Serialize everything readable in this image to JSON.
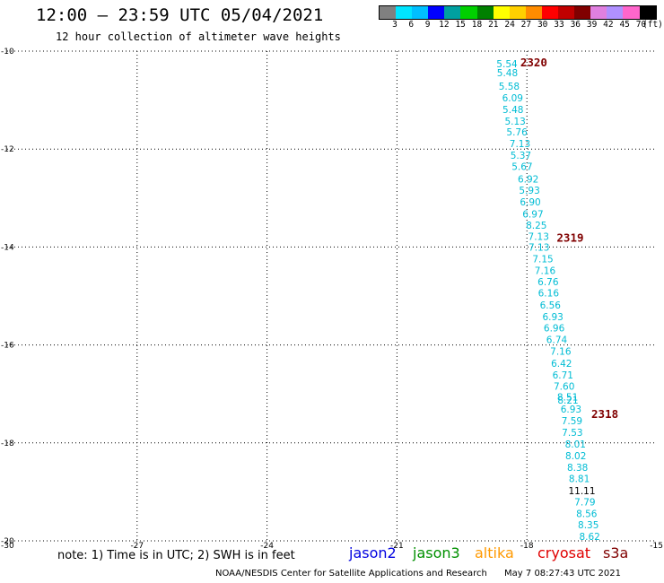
{
  "header": {
    "title": "12:00 – 23:59 UTC 05/04/2021",
    "subtitle": "12 hour collection of altimeter wave heights"
  },
  "color_scale": {
    "colors": [
      "#808080",
      "#00e5ff",
      "#00bfff",
      "#0000ff",
      "#00a0a0",
      "#00d000",
      "#008000",
      "#ffff00",
      "#ffd000",
      "#ff8c00",
      "#ff0000",
      "#c00000",
      "#800000",
      "#e080e0",
      "#b090ff",
      "#ff66cc",
      "#000000"
    ],
    "labels": [
      "3",
      "6",
      "9",
      "12",
      "15",
      "18",
      "21",
      "24",
      "27",
      "30",
      "33",
      "36",
      "39",
      "42",
      "45",
      "70"
    ],
    "unit": "(ft)"
  },
  "map": {
    "y_ticks": [
      "-10",
      "-12",
      "-14",
      "-16",
      "-18",
      "-20"
    ],
    "x_ticks": [
      "-30",
      "-27",
      "-24",
      "-21",
      "-18",
      "-15"
    ],
    "passes": [
      {
        "label": "2320",
        "color": "#800000"
      },
      {
        "label": "2319",
        "color": "#800000"
      },
      {
        "label": "2318",
        "color": "#800000"
      }
    ],
    "obs_color": "#00bcd4",
    "obs_black_color": "#000000",
    "observations": [
      {
        "lon": -18.46,
        "lat": -10.26,
        "swh": "5.54"
      },
      {
        "lon": -18.45,
        "lat": -10.44,
        "swh": "5.48"
      },
      {
        "lon": -18.41,
        "lat": -10.71,
        "swh": "5.58"
      },
      {
        "lon": -18.33,
        "lat": -10.95,
        "swh": "6.09"
      },
      {
        "lon": -18.32,
        "lat": -11.19,
        "swh": "5.48"
      },
      {
        "lon": -18.27,
        "lat": -11.43,
        "swh": "5.13"
      },
      {
        "lon": -18.23,
        "lat": -11.65,
        "swh": "5.76"
      },
      {
        "lon": -18.16,
        "lat": -11.89,
        "swh": "7.13"
      },
      {
        "lon": -18.14,
        "lat": -12.12,
        "swh": "5.37"
      },
      {
        "lon": -18.11,
        "lat": -12.35,
        "swh": "5.67"
      },
      {
        "lon": -17.97,
        "lat": -12.61,
        "swh": "6.92"
      },
      {
        "lon": -17.94,
        "lat": -12.84,
        "swh": "5.93"
      },
      {
        "lon": -17.92,
        "lat": -13.08,
        "swh": "6.90"
      },
      {
        "lon": -17.86,
        "lat": -13.32,
        "swh": "6.97"
      },
      {
        "lon": -17.78,
        "lat": -13.55,
        "swh": "8.25"
      },
      {
        "lon": -17.73,
        "lat": -13.78,
        "swh": "7.13"
      },
      {
        "lon": -17.72,
        "lat": -14.0,
        "swh": "7.13"
      },
      {
        "lon": -17.63,
        "lat": -14.24,
        "swh": "7.15"
      },
      {
        "lon": -17.58,
        "lat": -14.48,
        "swh": "7.16"
      },
      {
        "lon": -17.51,
        "lat": -14.71,
        "swh": "6.76"
      },
      {
        "lon": -17.5,
        "lat": -14.94,
        "swh": "6.16"
      },
      {
        "lon": -17.46,
        "lat": -15.18,
        "swh": "6.56"
      },
      {
        "lon": -17.4,
        "lat": -15.42,
        "swh": "6.93"
      },
      {
        "lon": -17.37,
        "lat": -15.65,
        "swh": "6.96"
      },
      {
        "lon": -17.31,
        "lat": -15.89,
        "swh": "6.74"
      },
      {
        "lon": -17.22,
        "lat": -16.13,
        "swh": "7.16"
      },
      {
        "lon": -17.2,
        "lat": -16.37,
        "swh": "6.42"
      },
      {
        "lon": -17.17,
        "lat": -16.61,
        "swh": "6.71"
      },
      {
        "lon": -17.14,
        "lat": -16.84,
        "swh": "7.60"
      },
      {
        "lon": -17.06,
        "lat": -17.06,
        "swh": "8.51"
      },
      {
        "lon": -17.05,
        "lat": -17.12,
        "swh": "8.21"
      },
      {
        "lon": -16.98,
        "lat": -17.31,
        "swh": "6.93"
      },
      {
        "lon": -16.96,
        "lat": -17.55,
        "swh": "7.59"
      },
      {
        "lon": -16.95,
        "lat": -17.78,
        "swh": "7.53"
      },
      {
        "lon": -16.88,
        "lat": -18.02,
        "swh": "8.01"
      },
      {
        "lon": -16.87,
        "lat": -18.26,
        "swh": "8.02"
      },
      {
        "lon": -16.83,
        "lat": -18.5,
        "swh": "8.38"
      },
      {
        "lon": -16.79,
        "lat": -18.73,
        "swh": "8.81"
      },
      {
        "lon": -16.73,
        "lat": -18.97,
        "swh": "11.11",
        "black": true
      },
      {
        "lon": -16.66,
        "lat": -19.2,
        "swh": "7.79"
      },
      {
        "lon": -16.62,
        "lat": -19.44,
        "swh": "8.56"
      },
      {
        "lon": -16.58,
        "lat": -19.67,
        "swh": "8.35"
      },
      {
        "lon": -16.55,
        "lat": -19.91,
        "swh": "8.62"
      }
    ],
    "pass_positions": [
      {
        "lon": -17.84,
        "lat": -10.24
      },
      {
        "lon": -17.0,
        "lat": -13.82
      },
      {
        "lon": -16.2,
        "lat": -17.42
      }
    ]
  },
  "note": "note:  1) Time is in UTC;  2) SWH is in feet",
  "legend": [
    {
      "label": "jason2",
      "color": "#0000e0"
    },
    {
      "label": "jason3",
      "color": "#009000"
    },
    {
      "label": "altika",
      "color": "#ff9900"
    },
    {
      "label": "cryosat",
      "color": "#e00000"
    },
    {
      "label": "s3a",
      "color": "#800000"
    }
  ],
  "footer": {
    "source": "NOAA/NESDIS Center for Satellite Applications and Research",
    "timestamp": "May  7 08:27:43 UTC 2021"
  }
}
